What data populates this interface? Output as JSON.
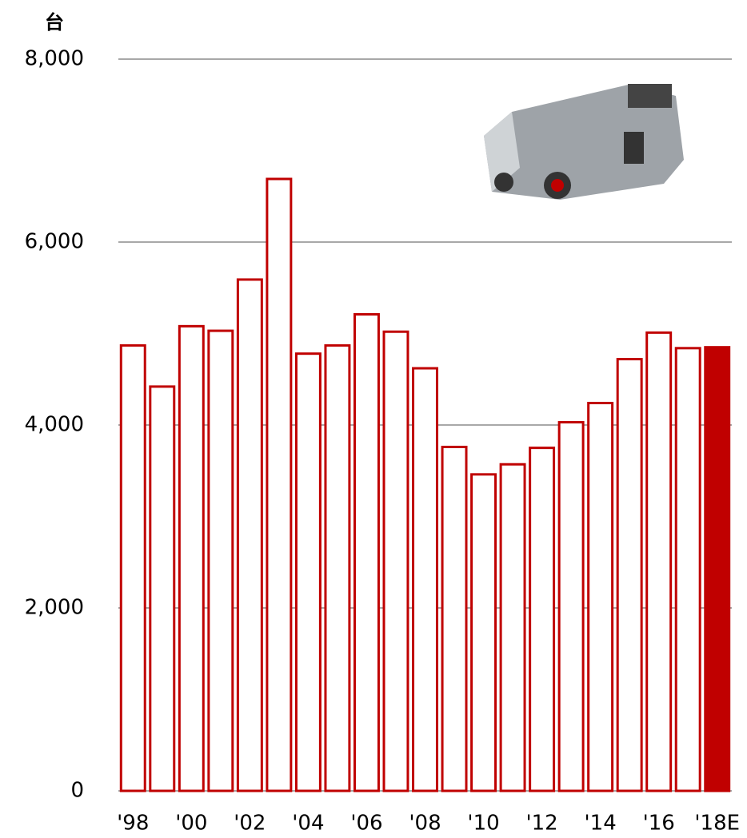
{
  "chart_data": {
    "type": "bar",
    "y_label": "台",
    "categories": [
      "'98",
      null,
      "'00",
      null,
      "'02",
      null,
      "'04",
      null,
      "'06",
      null,
      "'08",
      null,
      "'10",
      null,
      "'12",
      null,
      "'14",
      null,
      "'16",
      null,
      "'18E"
    ],
    "values": [
      4870,
      4420,
      5080,
      5030,
      5590,
      6690,
      4780,
      4870,
      5210,
      5020,
      4620,
      3760,
      3460,
      3570,
      3750,
      4030,
      4240,
      4720,
      5010,
      4840,
      4850
    ],
    "edge_color": "#c00000",
    "fill_colors": [
      "#ffffff",
      "#ffffff",
      "#ffffff",
      "#ffffff",
      "#ffffff",
      "#ffffff",
      "#ffffff",
      "#ffffff",
      "#ffffff",
      "#ffffff",
      "#ffffff",
      "#ffffff",
      "#ffffff",
      "#ffffff",
      "#ffffff",
      "#ffffff",
      "#ffffff",
      "#ffffff",
      "#ffffff",
      "#ffffff",
      "#c00000"
    ],
    "ylim": [
      0,
      8000
    ],
    "yticks": [
      0,
      {
        "value": 2000,
        "label": "2,000"
      },
      {
        "value": 4000,
        "label": "4,000"
      },
      {
        "value": 6000,
        "label": "6,000"
      },
      {
        "value": 8000,
        "label": "8,000"
      }
    ],
    "grid": true
  }
}
